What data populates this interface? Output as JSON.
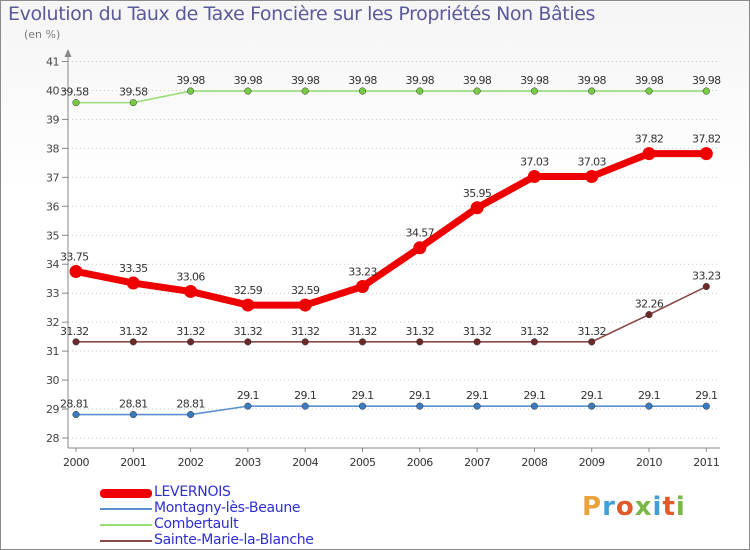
{
  "title": "Evolution du Taux de Taxe Foncière sur les Propriétés Non Bâties",
  "subtitle": "(en %)",
  "logo_text": "Proxiti",
  "logo_colors": [
    "#e8a33a",
    "#3fa0d8",
    "#e05a2a",
    "#7ab648",
    "#3fa0d8",
    "#e05a2a",
    "#7ab648"
  ],
  "chart_data": {
    "type": "line",
    "title": "Evolution du Taux de Taxe Foncière sur les Propriétés Non Bâties",
    "ylabel": "(en %)",
    "xlabel": "",
    "ylim": [
      28,
      41
    ],
    "yticks": [
      28,
      29,
      30,
      31,
      32,
      33,
      34,
      35,
      36,
      37,
      38,
      39,
      40,
      41
    ],
    "categories": [
      "2000",
      "2001",
      "2002",
      "2003",
      "2004",
      "2005",
      "2006",
      "2007",
      "2008",
      "2009",
      "2010",
      "2011"
    ],
    "grid": "horizontal dotted",
    "legend_position": "bottom-left",
    "series": [
      {
        "name": "LEVERNOIS",
        "color": "#ee0000",
        "emphasis": "bold",
        "values": [
          33.75,
          33.35,
          33.06,
          32.59,
          32.59,
          33.23,
          34.57,
          35.95,
          37.03,
          37.03,
          37.82,
          37.82
        ],
        "labels": [
          "33.75",
          "33.35",
          "33.06",
          "32.59",
          "32.59",
          "33.23",
          "34.57",
          "35.95",
          "37.03",
          "37.03",
          "37.82",
          "37.82"
        ]
      },
      {
        "name": "Montagny-lès-Beaune",
        "color": "#5b8fd0",
        "marker": "#3a7bbf",
        "emphasis": "normal",
        "values": [
          28.81,
          28.81,
          28.81,
          29.1,
          29.1,
          29.1,
          29.1,
          29.1,
          29.1,
          29.1,
          29.1,
          29.1
        ],
        "labels": [
          "28.81",
          "28.81",
          "28.81",
          "29.1",
          "29.1",
          "29.1",
          "29.1",
          "29.1",
          "29.1",
          "29.1",
          "29.1",
          "29.1"
        ]
      },
      {
        "name": "Combertault",
        "color": "#99dd77",
        "marker": "#77cc44",
        "emphasis": "normal",
        "values": [
          39.58,
          39.58,
          39.98,
          39.98,
          39.98,
          39.98,
          39.98,
          39.98,
          39.98,
          39.98,
          39.98,
          39.98
        ],
        "labels": [
          "39.58",
          "39.58",
          "39.98",
          "39.98",
          "39.98",
          "39.98",
          "39.98",
          "39.98",
          "39.98",
          "39.98",
          "39.98",
          "39.98"
        ]
      },
      {
        "name": "Sainte-Marie-la-Blanche",
        "color": "#8a4a4a",
        "marker": "#6b2a2a",
        "emphasis": "normal",
        "values": [
          31.32,
          31.32,
          31.32,
          31.32,
          31.32,
          31.32,
          31.32,
          31.32,
          31.32,
          31.32,
          32.26,
          33.23
        ],
        "labels": [
          "31.32",
          "31.32",
          "31.32",
          "31.32",
          "31.32",
          "31.32",
          "31.32",
          "31.32",
          "31.32",
          "31.32",
          "32.26",
          "33.23"
        ]
      }
    ]
  }
}
